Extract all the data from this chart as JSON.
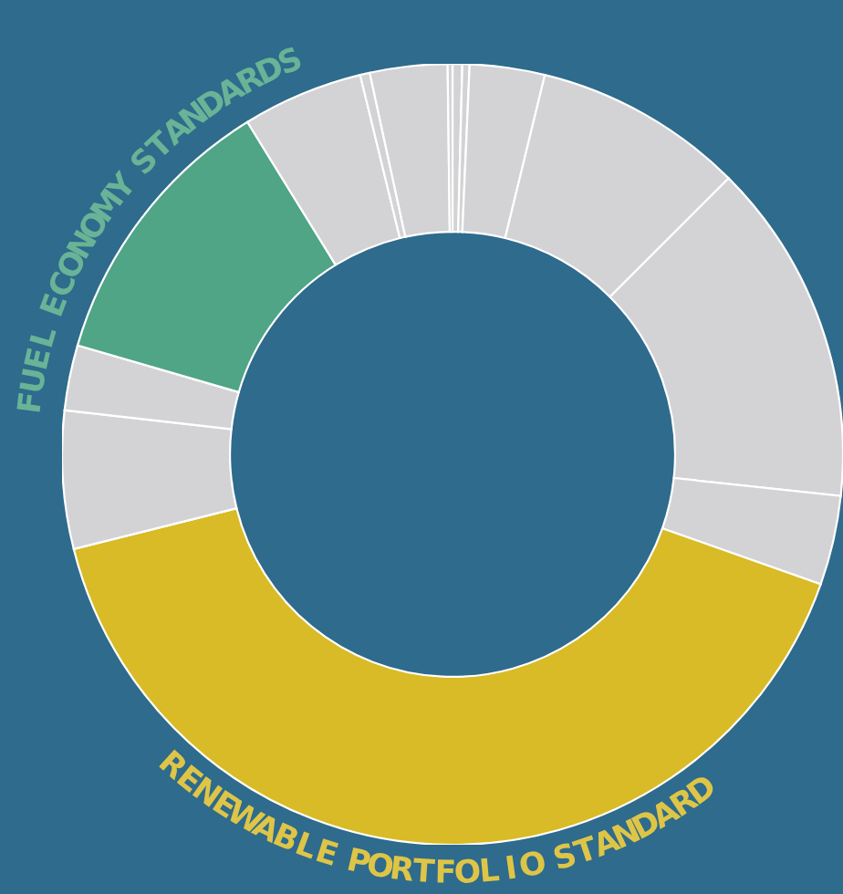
{
  "chart_data": {
    "type": "donut",
    "categories": [
      null,
      null,
      null,
      null,
      null,
      null,
      "RENEWABLE PORTFOLIO STANDARD",
      null,
      null,
      "FUEL ECONOMY STANDARDS",
      null,
      null,
      null,
      null
    ],
    "values": [
      0.4,
      0.3,
      3.1,
      8.7,
      14.2,
      3.7,
      40.7,
      5.7,
      2.7,
      11.7,
      5.0,
      0.4,
      3.2,
      0.2
    ],
    "colors": [
      "#d3d3d5",
      "#d3d3d5",
      "#d3d3d5",
      "#d3d3d5",
      "#d3d3d5",
      "#d3d3d5",
      "#d8bb26",
      "#d3d3d5",
      "#d3d3d5",
      "#4fa585",
      "#d3d3d5",
      "#d3d3d5",
      "#d3d3d5",
      "#d3d3d5"
    ],
    "legend": false
  }
}
